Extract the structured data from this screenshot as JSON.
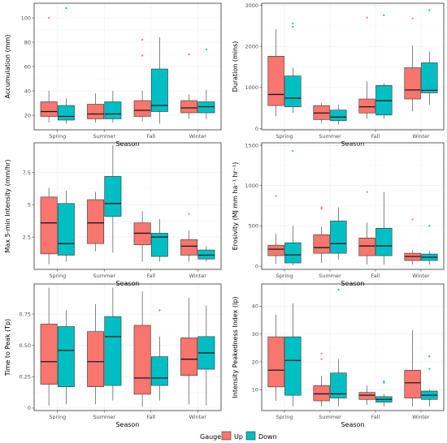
{
  "legend": {
    "title": "Gauge",
    "items": [
      {
        "name": "Up",
        "color": "#F8766D"
      },
      {
        "name": "Down",
        "color": "#00BFC4"
      }
    ]
  },
  "chart_data": [
    {
      "type": "boxplot",
      "ylabel": "Accumulation (mm)",
      "xlabel": "Season",
      "categories": [
        "Spring",
        "Summer",
        "Fall",
        "Winter"
      ],
      "ylim": [
        8,
        112
      ],
      "yticks": [
        20,
        40,
        60,
        80,
        100
      ],
      "series": [
        {
          "name": "Up",
          "boxes": [
            {
              "min": 14,
              "q1": 19,
              "median": 23,
              "q3": 31,
              "max": 40,
              "outliers": [
                100
              ]
            },
            {
              "min": 14,
              "q1": 17,
              "median": 21,
              "q3": 29,
              "max": 38,
              "outliers": []
            },
            {
              "min": 15,
              "q1": 19,
              "median": 24,
              "q3": 32,
              "max": 40,
              "outliers": [
                82,
                69
              ]
            },
            {
              "min": 17,
              "q1": 22,
              "median": 26,
              "q3": 32,
              "max": 37,
              "outliers": [
                70
              ]
            }
          ]
        },
        {
          "name": "Down",
          "boxes": [
            {
              "min": 13,
              "q1": 16,
              "median": 19,
              "q3": 28,
              "max": 34,
              "outliers": [
                108
              ]
            },
            {
              "min": 14,
              "q1": 17,
              "median": 21,
              "q3": 31,
              "max": 40,
              "outliers": []
            },
            {
              "min": 13,
              "q1": 23,
              "median": 28,
              "q3": 58,
              "max": 84,
              "outliers": []
            },
            {
              "min": 17,
              "q1": 22,
              "median": 27,
              "q3": 31,
              "max": 41,
              "outliers": [
                74
              ]
            }
          ]
        }
      ]
    },
    {
      "type": "boxplot",
      "ylabel": "Duration (mins)",
      "xlabel": "Season",
      "categories": [
        "Spring",
        "Summer",
        "Fall",
        "Winter"
      ],
      "ylim": [
        -30,
        3050
      ],
      "yticks": [
        0,
        1000,
        2000,
        3000
      ],
      "series": [
        {
          "name": "Up",
          "boxes": [
            {
              "min": 300,
              "q1": 560,
              "median": 830,
              "q3": 1760,
              "max": 2420,
              "outliers": []
            },
            {
              "min": 130,
              "q1": 220,
              "median": 380,
              "q3": 560,
              "max": 620,
              "outliers": []
            },
            {
              "min": 240,
              "q1": 380,
              "median": 530,
              "q3": 720,
              "max": 1150,
              "outliers": [
                2700
              ]
            },
            {
              "min": 420,
              "q1": 720,
              "median": 940,
              "q3": 1480,
              "max": 2020,
              "outliers": [
                2680
              ]
            }
          ]
        },
        {
          "name": "Down",
          "boxes": [
            {
              "min": 380,
              "q1": 530,
              "median": 740,
              "q3": 1280,
              "max": 1480,
              "outliers": [
                2560,
                2480
              ]
            },
            {
              "min": 90,
              "q1": 190,
              "median": 280,
              "q3": 450,
              "max": 580,
              "outliers": []
            },
            {
              "min": 240,
              "q1": 330,
              "median": 680,
              "q3": 1050,
              "max": 1100,
              "outliers": [
                2760
              ]
            },
            {
              "min": 580,
              "q1": 870,
              "median": 930,
              "q3": 1600,
              "max": 1870,
              "outliers": [
                2880
              ]
            }
          ]
        }
      ]
    },
    {
      "type": "boxplot",
      "ylabel": "Max 5-min Intensity (mm/hr)",
      "xlabel": "Season",
      "categories": [
        "Spring",
        "Summer",
        "Fall",
        "Winter"
      ],
      "ylim": [
        0,
        9.8
      ],
      "yticks": [
        2.5,
        5.0,
        7.5
      ],
      "series": [
        {
          "name": "Up",
          "boxes": [
            {
              "min": 0.4,
              "q1": 1.2,
              "median": 3.6,
              "q3": 5.6,
              "max": 6.3,
              "outliers": []
            },
            {
              "min": 1.4,
              "q1": 2.0,
              "median": 3.6,
              "q3": 5.4,
              "max": 6.0,
              "outliers": []
            },
            {
              "min": 0.6,
              "q1": 1.9,
              "median": 2.8,
              "q3": 3.6,
              "max": 4.5,
              "outliers": []
            },
            {
              "min": 0.6,
              "q1": 1.1,
              "median": 1.8,
              "q3": 2.3,
              "max": 3.0,
              "outliers": [
                4.3
              ]
            }
          ]
        },
        {
          "name": "Down",
          "boxes": [
            {
              "min": 0.6,
              "q1": 1.1,
              "median": 2.0,
              "q3": 5.1,
              "max": 6.1,
              "outliers": []
            },
            {
              "min": 1.3,
              "q1": 4.1,
              "median": 5.1,
              "q3": 7.2,
              "max": 9.6,
              "outliers": []
            },
            {
              "min": 0.6,
              "q1": 1.0,
              "median": 2.5,
              "q3": 2.8,
              "max": 3.9,
              "outliers": []
            },
            {
              "min": 0.6,
              "q1": 0.8,
              "median": 1.1,
              "q3": 1.5,
              "max": 1.8,
              "outliers": []
            }
          ]
        }
      ]
    },
    {
      "type": "boxplot",
      "ylabel": "Erosivity (MJ mm ha⁻¹ hr⁻¹)",
      "xlabel": "Season",
      "categories": [
        "Spring",
        "Summer",
        "Fall",
        "Winter"
      ],
      "ylim": [
        -40,
        1530
      ],
      "yticks": [
        0,
        500,
        1000,
        1500
      ],
      "series": [
        {
          "name": "Up",
          "boxes": [
            {
              "min": 30,
              "q1": 130,
              "median": 210,
              "q3": 260,
              "max": 400,
              "outliers": [
                870
              ]
            },
            {
              "min": 40,
              "q1": 160,
              "median": 230,
              "q3": 390,
              "max": 490,
              "outliers": [
                730,
                710
              ]
            },
            {
              "min": 20,
              "q1": 130,
              "median": 250,
              "q3": 350,
              "max": 540,
              "outliers": [
                920
              ]
            },
            {
              "min": 20,
              "q1": 70,
              "median": 120,
              "q3": 160,
              "max": 200,
              "outliers": [
                580
              ]
            }
          ]
        },
        {
          "name": "Down",
          "boxes": [
            {
              "min": 10,
              "q1": 40,
              "median": 140,
              "q3": 290,
              "max": 500,
              "outliers": [
                1430
              ]
            },
            {
              "min": 80,
              "q1": 160,
              "median": 280,
              "q3": 560,
              "max": 730,
              "outliers": []
            },
            {
              "min": 20,
              "q1": 130,
              "median": 250,
              "q3": 470,
              "max": 920,
              "outliers": []
            },
            {
              "min": 20,
              "q1": 70,
              "median": 110,
              "q3": 150,
              "max": 190,
              "outliers": [
                500
              ]
            }
          ]
        }
      ]
    },
    {
      "type": "boxplot",
      "ylabel": "Time to Peak (Tp)",
      "xlabel": "Season",
      "categories": [
        "Spring",
        "Summer",
        "Fall",
        "Winter"
      ],
      "ylim": [
        -0.02,
        0.99
      ],
      "yticks": [
        0.0,
        0.25,
        0.5,
        0.75
      ],
      "series": [
        {
          "name": "Up",
          "boxes": [
            {
              "min": 0.02,
              "q1": 0.19,
              "median": 0.37,
              "q3": 0.67,
              "max": 0.96,
              "outliers": []
            },
            {
              "min": 0.03,
              "q1": 0.17,
              "median": 0.37,
              "q3": 0.61,
              "max": 0.83,
              "outliers": []
            },
            {
              "min": 0.01,
              "q1": 0.11,
              "median": 0.24,
              "q3": 0.66,
              "max": 0.93,
              "outliers": []
            },
            {
              "min": 0.03,
              "q1": 0.26,
              "median": 0.39,
              "q3": 0.56,
              "max": 0.88,
              "outliers": []
            }
          ]
        },
        {
          "name": "Down",
          "boxes": [
            {
              "min": 0.03,
              "q1": 0.17,
              "median": 0.46,
              "q3": 0.65,
              "max": 0.78,
              "outliers": []
            },
            {
              "min": 0.06,
              "q1": 0.18,
              "median": 0.57,
              "q3": 0.73,
              "max": 0.96,
              "outliers": []
            },
            {
              "min": 0.06,
              "q1": 0.18,
              "median": 0.24,
              "q3": 0.41,
              "max": 0.57,
              "outliers": [
                0.78
              ]
            },
            {
              "min": 0.02,
              "q1": 0.31,
              "median": 0.44,
              "q3": 0.57,
              "max": 0.82,
              "outliers": []
            }
          ]
        }
      ]
    },
    {
      "type": "boxplot",
      "ylabel": "Intensity Peakedness Index (Ip)",
      "xlabel": "Season",
      "categories": [
        "Spring",
        "Summer",
        "Fall",
        "Winter"
      ],
      "ylim": [
        2.5,
        48
      ],
      "yticks": [
        10,
        20,
        30,
        40
      ],
      "series": [
        {
          "name": "Up",
          "boxes": [
            {
              "min": 6,
              "q1": 11,
              "median": 17,
              "q3": 29,
              "max": 37,
              "outliers": []
            },
            {
              "min": 4,
              "q1": 6,
              "median": 8.5,
              "q3": 11.5,
              "max": 15,
              "outliers": [
                23,
                21
              ]
            },
            {
              "min": 4.5,
              "q1": 6.5,
              "median": 8,
              "q3": 9,
              "max": 11.5,
              "outliers": []
            },
            {
              "min": 4,
              "q1": 7,
              "median": 12.5,
              "q3": 17,
              "max": 31.5,
              "outliers": []
            }
          ]
        },
        {
          "name": "Down",
          "boxes": [
            {
              "min": 4,
              "q1": 8,
              "median": 20.5,
              "q3": 29,
              "max": 41,
              "outliers": []
            },
            {
              "min": 4,
              "q1": 7,
              "median": 8.5,
              "q3": 16,
              "max": 21,
              "outliers": [
                46
              ]
            },
            {
              "min": 4,
              "q1": 5.5,
              "median": 6.5,
              "q3": 7.5,
              "max": 8.5,
              "outliers": [
                13,
                12.5
              ]
            },
            {
              "min": 4,
              "q1": 6.5,
              "median": 8,
              "q3": 9.5,
              "max": 10,
              "outliers": [
                22,
                17.5
              ]
            }
          ]
        }
      ]
    }
  ]
}
